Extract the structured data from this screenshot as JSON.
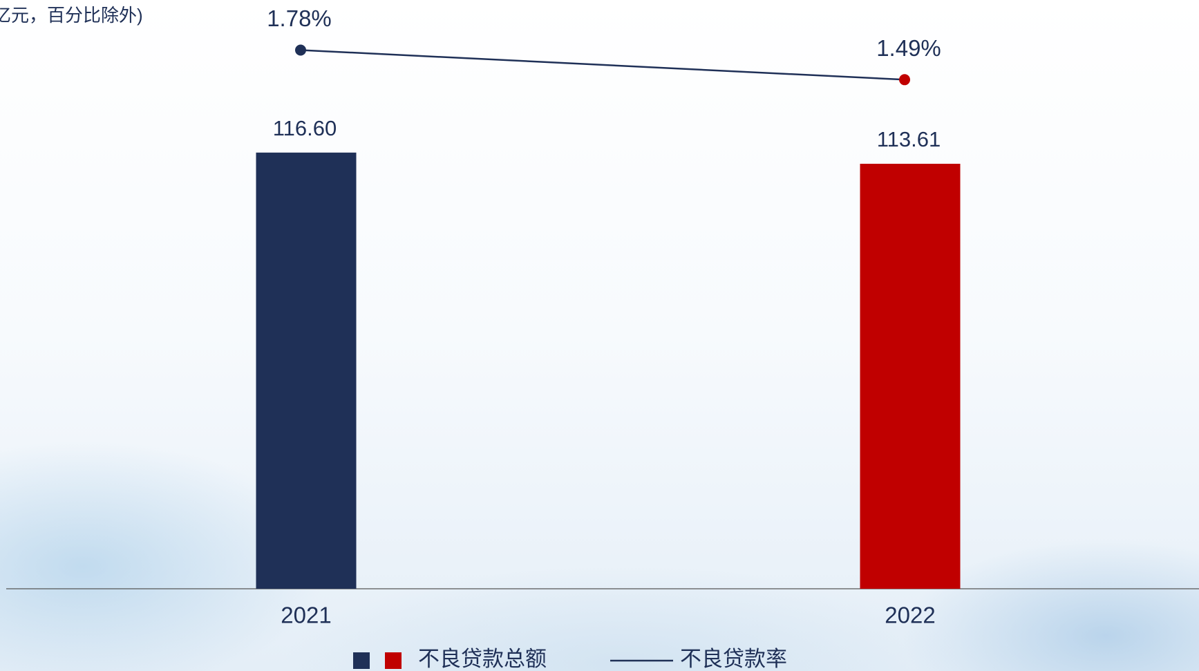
{
  "chart_data": {
    "type": "bar",
    "subtitle": "亿元，百分比除外)",
    "categories": [
      "2021",
      "2022"
    ],
    "series": [
      {
        "name": "不良贷款总额",
        "type": "bar",
        "colors": [
          "#1f3057",
          "#c00000"
        ],
        "values": [
          116.6,
          113.61
        ],
        "value_labels": [
          "116.60",
          "113.61"
        ]
      },
      {
        "name": "不良贷款率",
        "type": "line",
        "axis": "y2",
        "color": "#1f3057",
        "point_colors": [
          "#1f3057",
          "#c00000"
        ],
        "values": [
          1.78,
          1.49
        ],
        "value_labels": [
          "1.78%",
          "1.49%"
        ]
      }
    ],
    "ylim": [
      0,
      150
    ],
    "y2lim": [
      -3.5,
      2.0
    ]
  }
}
